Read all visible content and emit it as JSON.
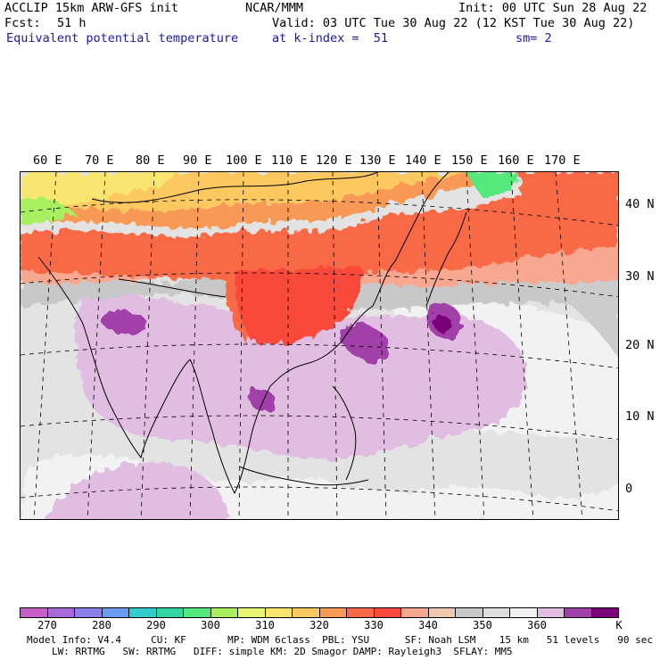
{
  "header": {
    "model": "ACCLIP 15km ARW-GFS init",
    "org": "NCAR/MMM",
    "init": "Init: 00 UTC Sun 28 Aug 22",
    "fcst_label": "Fcst:",
    "fcst_value": "51 h",
    "valid": "Valid: 03 UTC Tue 30 Aug 22 (12 KST Tue 30 Aug 22)",
    "field": "Equivalent potential temperature",
    "level": "at k-index =  51",
    "smooth": "sm= 2"
  },
  "map": {
    "lon_labels": [
      "60 E",
      "70 E",
      "80 E",
      "90 E",
      "100 E",
      "110 E",
      "120 E",
      "130 E",
      "140 E",
      "150 E",
      "160 E",
      "170 E"
    ],
    "lat_labels": [
      "40 N",
      "30 N",
      "20 N",
      "10 N",
      "0"
    ]
  },
  "colorbar": {
    "unit": "K",
    "labels": [
      "270",
      "280",
      "290",
      "300",
      "310",
      "320",
      "330",
      "340",
      "350",
      "360"
    ],
    "colors": [
      "#c85ec8",
      "#a66bd9",
      "#8b7fe8",
      "#6b9cf0",
      "#33cccc",
      "#33d6a0",
      "#55e87a",
      "#a8f060",
      "#e8f570",
      "#f8e670",
      "#fcc860",
      "#f89a55",
      "#f86a45",
      "#f84a3a",
      "#f8a890",
      "#f0c8b0",
      "#c8c8c8",
      "#dedede",
      "#f2f2f2",
      "#e2bde2",
      "#a040a8",
      "#7a007a"
    ]
  },
  "model_info": {
    "line1": "Model Info: V4.4     CU: KF       MP: WDM 6class  PBL: YSU      SF: Noah LSM    15 km   51 levels   90 sec",
    "line2": "LW: RRTMG   SW: RRTMG   DIFF: simple KM: 2D Smagor DAMP: Rayleigh3  SFLAY: MM5"
  }
}
